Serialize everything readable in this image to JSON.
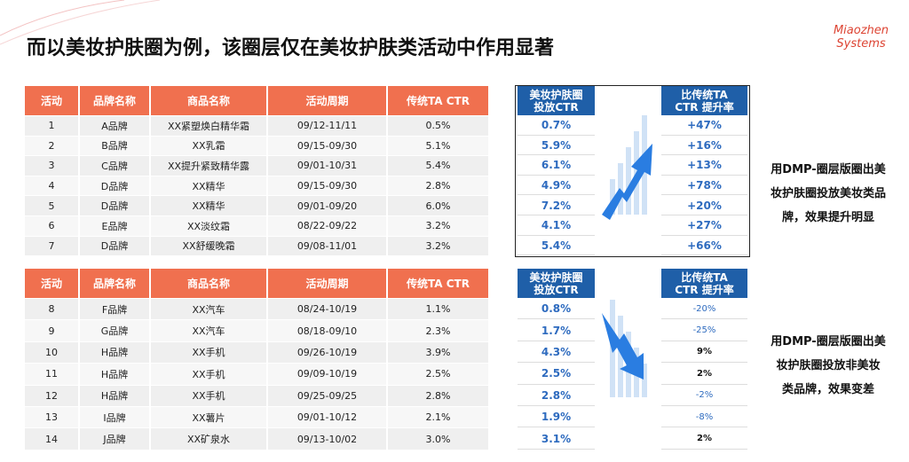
{
  "title": "而以美妆护肤圈为例，该圈层仅在美妆护肤类活动中作用显著",
  "logo": [
    "Miaozhen",
    "Systems"
  ],
  "sections": [
    {
      "table": {
        "headers": [
          "活动",
          "品牌名称",
          "商品名称",
          "活动周期",
          "传统TA CTR"
        ],
        "rows": [
          [
            "1",
            "A品牌",
            "XX紧塑焕白精华霜",
            "09/12-11/11",
            "0.5%"
          ],
          [
            "2",
            "B品牌",
            "XX乳霜",
            "09/15-09/30",
            "5.1%"
          ],
          [
            "3",
            "C品牌",
            "XX提升紧致精华露",
            "09/01-10/31",
            "5.4%"
          ],
          [
            "4",
            "D品牌",
            "XX精华",
            "09/15-09/30",
            "2.8%"
          ],
          [
            "5",
            "D品牌",
            "XX精华",
            "09/01-09/20",
            "6.0%"
          ],
          [
            "6",
            "E品牌",
            "XX淡纹霜",
            "08/22-09/22",
            "3.2%"
          ],
          [
            "7",
            "D品牌",
            "XX舒缓晚霜",
            "09/08-11/01",
            "3.2%"
          ]
        ]
      },
      "panel": {
        "headers": [
          [
            "美妆护肤圈",
            "投放CTR"
          ],
          [
            "比传统TA",
            "CTR 提升率"
          ]
        ],
        "rows": [
          [
            "0.7%",
            "+47%"
          ],
          [
            "5.9%",
            "+16%"
          ],
          [
            "6.1%",
            "+13%"
          ],
          [
            "4.9%",
            "+78%"
          ],
          [
            "7.2%",
            "+20%"
          ],
          [
            "4.1%",
            "+27%"
          ],
          [
            "5.4%",
            "+66%"
          ]
        ]
      },
      "note": [
        "用DMP-圈层版圈出美",
        "妆护肤圈投放美妆类品",
        "牌，效果提升明显"
      ]
    },
    {
      "table": {
        "headers": [
          "活动",
          "品牌名称",
          "商品名称",
          "活动周期",
          "传统TA CTR"
        ],
        "rows": [
          [
            "8",
            "F品牌",
            "XX汽车",
            "08/24-10/19",
            "1.1%"
          ],
          [
            "9",
            "G品牌",
            "XX汽车",
            "08/18-09/10",
            "2.3%"
          ],
          [
            "10",
            "H品牌",
            "XX手机",
            "09/26-10/19",
            "3.9%"
          ],
          [
            "11",
            "H品牌",
            "XX手机",
            "09/09-10/19",
            "2.5%"
          ],
          [
            "12",
            "H品牌",
            "XX手机",
            "09/25-09/25",
            "2.8%"
          ],
          [
            "13",
            "I品牌",
            "XX薯片",
            "09/01-10/12",
            "2.1%"
          ],
          [
            "14",
            "J品牌",
            "XX矿泉水",
            "09/13-10/02",
            "3.0%"
          ]
        ]
      },
      "panel": {
        "headers": [
          [
            "美妆护肤圈",
            "投放CTR"
          ],
          [
            "比传统TA",
            "CTR 提升率"
          ]
        ],
        "rows": [
          [
            "0.8%",
            "-20%"
          ],
          [
            "1.7%",
            "-25%"
          ],
          [
            "4.3%",
            "9%"
          ],
          [
            "2.5%",
            "2%"
          ],
          [
            "2.8%",
            "-2%"
          ],
          [
            "1.9%",
            "-8%"
          ],
          [
            "3.1%",
            "2%"
          ]
        ]
      },
      "note": [
        "用DMP-圈层版圈出美",
        "妆护肤圈投放非美妆",
        "类品牌，效果变差"
      ]
    }
  ]
}
